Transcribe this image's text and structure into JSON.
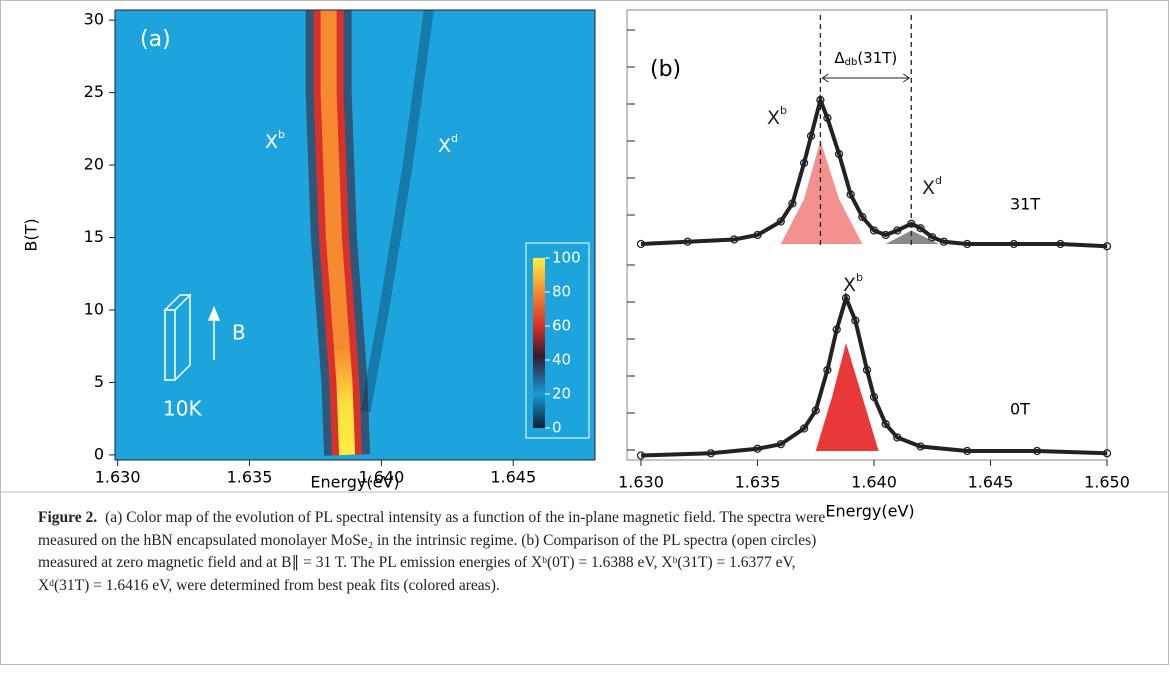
{
  "panel_a": {
    "type": "heatmap-trace",
    "label": "(a)",
    "xlabel": "Energy(eV)",
    "ylabel": "B(T)",
    "xlim": [
      1.6299,
      1.6481
    ],
    "ylim": [
      -0.35,
      30.7
    ],
    "xticks": [
      {
        "value": 1.63,
        "label": "1.630"
      },
      {
        "value": 1.635,
        "label": "1.635"
      },
      {
        "value": 1.64,
        "label": "1.640"
      },
      {
        "value": 1.645,
        "label": "1.645"
      }
    ],
    "yticks": [
      0,
      5,
      10,
      15,
      20,
      25,
      30
    ],
    "series": [
      {
        "name": {
          "text": "X",
          "sup": "b"
        },
        "B": [
          0,
          5,
          10,
          15,
          20,
          25,
          30.7
        ],
        "values": [
          1.6387,
          1.6386,
          1.6384,
          1.6382,
          1.6381,
          1.638,
          1.638
        ]
      },
      {
        "name": {
          "text": "X",
          "sup": "d"
        },
        "B": [
          3,
          10,
          20,
          30.7
        ],
        "values": [
          1.6394,
          1.6401,
          1.641,
          1.6418
        ]
      }
    ],
    "annotations": [
      "B",
      "10K"
    ],
    "colorbar": {
      "ylim": [
        0,
        100
      ],
      "yticks": [
        0,
        20,
        40,
        60,
        80,
        100
      ]
    }
  },
  "panel_b": {
    "type": "scatter",
    "label": "(b)",
    "xlabel": "Energy(eV)",
    "xlim": [
      1.6294,
      1.65
    ],
    "ylim": [
      0,
      100
    ],
    "xticks": [
      {
        "value": 1.63,
        "label": "1.630"
      },
      {
        "value": 1.635,
        "label": "1.635"
      },
      {
        "value": 1.64,
        "label": "1.640"
      },
      {
        "value": 1.645,
        "label": "1.645"
      },
      {
        "value": 1.65,
        "label": "1.650"
      }
    ],
    "series": [
      {
        "name": "31T",
        "x": [
          1.63,
          1.632,
          1.634,
          1.635,
          1.636,
          1.6365,
          1.637,
          1.6373,
          1.6377,
          1.638,
          1.6385,
          1.639,
          1.6395,
          1.64,
          1.6405,
          1.641,
          1.6416,
          1.642,
          1.6425,
          1.643,
          1.644,
          1.646,
          1.648,
          1.65
        ],
        "values": [
          48,
          48.5,
          49,
          50,
          53,
          57,
          66,
          72,
          80,
          76,
          68,
          59,
          54,
          51,
          50,
          51,
          52.5,
          51.5,
          49.5,
          48.5,
          48,
          48,
          48,
          47.5
        ]
      },
      {
        "name": "0T",
        "x": [
          1.63,
          1.633,
          1.635,
          1.636,
          1.637,
          1.6375,
          1.638,
          1.6384,
          1.6388,
          1.6392,
          1.6397,
          1.64,
          1.6405,
          1.641,
          1.642,
          1.644,
          1.647,
          1.65
        ],
        "values": [
          1,
          1.5,
          2.5,
          3.5,
          7,
          11,
          20,
          29,
          36,
          31,
          20,
          14,
          8,
          5,
          3,
          2,
          2,
          1.5
        ]
      }
    ],
    "fits": [
      {
        "color": "#f39090",
        "x": [
          1.636,
          1.637,
          1.6377,
          1.6385,
          1.6395
        ],
        "values": [
          48,
          58,
          71,
          58,
          48
        ]
      },
      {
        "color": "#8a8a8a",
        "x": [
          1.6405,
          1.6416,
          1.6428
        ],
        "values": [
          48,
          51,
          48
        ]
      },
      {
        "color": "#e83838",
        "x": [
          1.6375,
          1.6382,
          1.6388,
          1.6395,
          1.6402
        ],
        "values": [
          2,
          14,
          26,
          14,
          2
        ]
      }
    ],
    "markers": [
      1.6377,
      1.6416
    ],
    "delta": {
      "text": "Δ",
      "sub": "db",
      "after": "(31T)"
    },
    "peak_labels": [
      {
        "text": "X",
        "sup": "b"
      },
      {
        "text": "X",
        "sup": "d"
      },
      {
        "text": "X",
        "sup": "b"
      }
    ]
  },
  "caption": {
    "label": "Figure 2.",
    "lines": [
      "(a) Color map of the evolution of PL spectral intensity as a function of the in-plane magnetic field. The spectra were",
      "measured on the hBN encapsulated monolayer MoSe₂ in the intrinsic regime. (b) Comparison of the PL spectra (open circles)",
      "measured at zero magnetic field and at B∥ = 31 T. The PL emission energies of Xᵇ(0T) = 1.6388 eV, Xᵇ(31T) = 1.6377 eV,",
      "Xᵈ(31T) = 1.6416 eV, were determined from best peak fits (colored areas)."
    ]
  }
}
